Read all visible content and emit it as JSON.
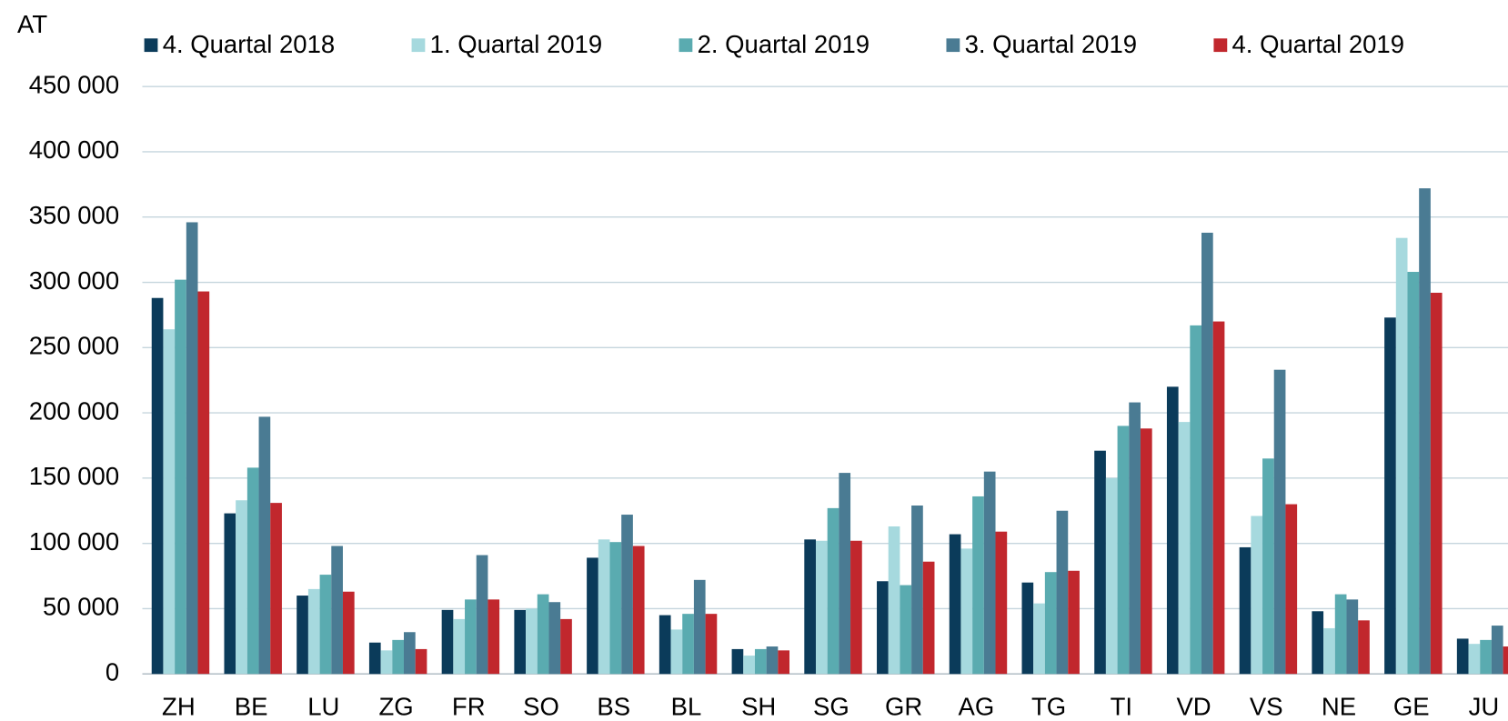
{
  "chart_data": {
    "type": "bar",
    "y_label": "AT",
    "categories": [
      "ZH",
      "BE",
      "LU",
      "ZG",
      "FR",
      "SO",
      "BS",
      "BL",
      "SH",
      "SG",
      "GR",
      "AG",
      "TG",
      "TI",
      "VD",
      "VS",
      "NE",
      "GE",
      "JU"
    ],
    "series": [
      {
        "name": "4. Quartal 2018",
        "color": "#0b3b5a",
        "values": [
          288000,
          123000,
          60000,
          24000,
          49000,
          49000,
          89000,
          45000,
          19000,
          103000,
          71000,
          107000,
          70000,
          171000,
          220000,
          97000,
          48000,
          273000,
          27000
        ]
      },
      {
        "name": "1. Quartal 2019",
        "color": "#a6d9de",
        "values": [
          264000,
          133000,
          65000,
          18000,
          42000,
          50000,
          103000,
          34000,
          14000,
          102000,
          113000,
          96000,
          54000,
          150000,
          193000,
          121000,
          35000,
          334000,
          23000
        ]
      },
      {
        "name": "2. Quartal 2019",
        "color": "#5aabb0",
        "values": [
          302000,
          158000,
          76000,
          26000,
          57000,
          61000,
          101000,
          46000,
          19000,
          127000,
          68000,
          136000,
          78000,
          190000,
          267000,
          165000,
          61000,
          308000,
          26000
        ]
      },
      {
        "name": "3. Quartal 2019",
        "color": "#4a7b93",
        "values": [
          346000,
          197000,
          98000,
          32000,
          91000,
          55000,
          122000,
          72000,
          21000,
          154000,
          129000,
          155000,
          125000,
          208000,
          338000,
          233000,
          57000,
          372000,
          37000
        ]
      },
      {
        "name": "4. Quartal 2019",
        "color": "#c1272d",
        "values": [
          293000,
          131000,
          63000,
          19000,
          57000,
          42000,
          98000,
          46000,
          18000,
          102000,
          86000,
          109000,
          79000,
          188000,
          270000,
          130000,
          41000,
          292000,
          21000
        ]
      }
    ],
    "ylim": [
      0,
      450000
    ],
    "yticks": [
      0,
      {
        "value": 50000,
        "label": "50 000"
      },
      {
        "value": 100000,
        "label": "100 000"
      },
      {
        "value": 150000,
        "label": "150 000"
      },
      {
        "value": 200000,
        "label": "200 000"
      },
      {
        "value": 250000,
        "label": "250 000"
      },
      {
        "value": 300000,
        "label": "300 000"
      },
      {
        "value": 350000,
        "label": "350 000"
      },
      {
        "value": 400000,
        "label": "400 000"
      },
      {
        "value": 450000,
        "label": "450 000"
      }
    ],
    "grid": true,
    "legend": "top"
  }
}
